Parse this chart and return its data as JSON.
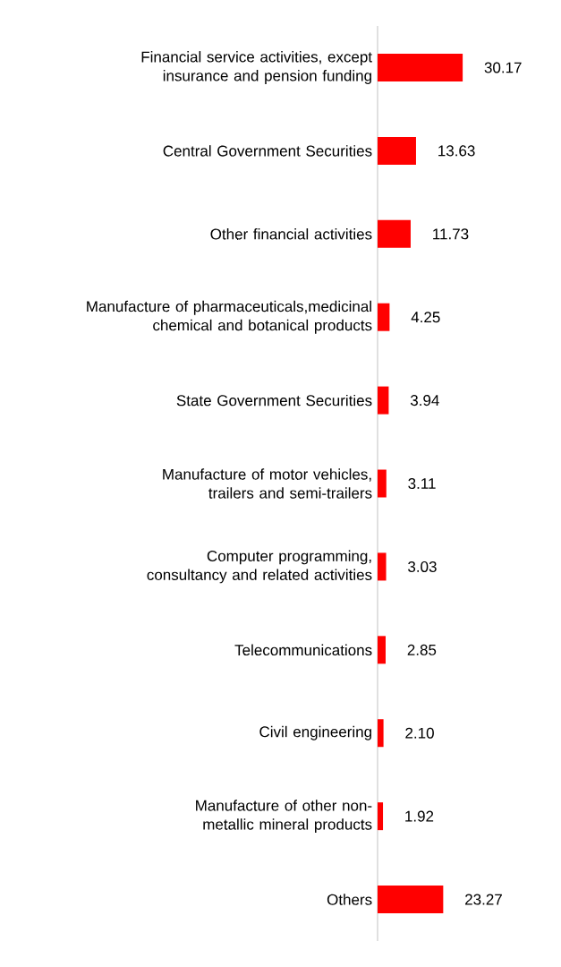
{
  "chart_data": {
    "type": "bar",
    "orientation": "horizontal",
    "color": "#ff0000",
    "categories": [
      "Financial service activities, except insurance and pension funding",
      "Central Government Securities",
      "Other financial activities",
      "Manufacture of pharmaceuticals,medicinal chemical and botanical products",
      "State Government Securities",
      "Manufacture of motor vehicles, trailers and semi-trailers",
      "Computer programming, consultancy and related activities",
      "Telecommunications",
      "Civil engineering",
      "Manufacture of other non-metallic mineral products",
      "Others"
    ],
    "values": [
      30.17,
      13.63,
      11.73,
      4.25,
      3.94,
      3.11,
      3.03,
      2.85,
      2.1,
      1.92,
      23.27
    ],
    "value_labels": [
      "30.17",
      "13.63",
      "11.73",
      "4.25",
      "3.94",
      "3.11",
      "3.03",
      "2.85",
      "2.10",
      "1.92",
      "23.27"
    ]
  }
}
